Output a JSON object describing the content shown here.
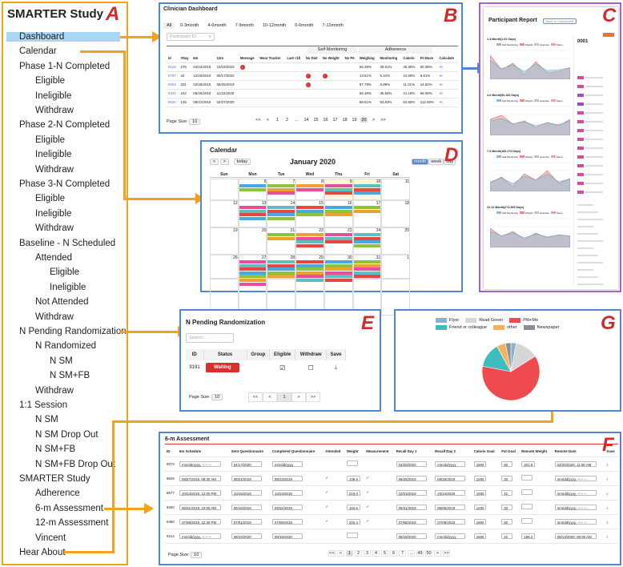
{
  "sidebar": {
    "title": "SMARTER Study",
    "letter": "A",
    "items": [
      {
        "label": "Dashboard",
        "indent": 0,
        "active": true
      },
      {
        "label": "Calendar",
        "indent": 0
      },
      {
        "label": "Phase 1-N Completed",
        "indent": 0
      },
      {
        "label": "Eligible",
        "indent": 1
      },
      {
        "label": "Ineligible",
        "indent": 1
      },
      {
        "label": "Withdraw",
        "indent": 1
      },
      {
        "label": "Phase 2-N Completed",
        "indent": 0
      },
      {
        "label": "Eligible",
        "indent": 1
      },
      {
        "label": "Ineligible",
        "indent": 1
      },
      {
        "label": "Withdraw",
        "indent": 1
      },
      {
        "label": "Phase 3-N Completed",
        "indent": 0
      },
      {
        "label": "Eligible",
        "indent": 1
      },
      {
        "label": "Ineligible",
        "indent": 1
      },
      {
        "label": "Withdraw",
        "indent": 1
      },
      {
        "label": "Baseline - N Scheduled",
        "indent": 0
      },
      {
        "label": "Attended",
        "indent": 1
      },
      {
        "label": "Eligible",
        "indent": 2
      },
      {
        "label": "Ineligible",
        "indent": 2
      },
      {
        "label": "Not Attended",
        "indent": 1
      },
      {
        "label": "Withdraw",
        "indent": 1
      },
      {
        "label": "N Pending Randomization",
        "indent": 0
      },
      {
        "label": "N Randomized",
        "indent": 1
      },
      {
        "label": "N SM",
        "indent": 2
      },
      {
        "label": "N SM+FB",
        "indent": 2
      },
      {
        "label": "Withdraw",
        "indent": 1
      },
      {
        "label": "1:1 Session",
        "indent": 0
      },
      {
        "label": "N SM",
        "indent": 1
      },
      {
        "label": "N SM Drop Out",
        "indent": 1
      },
      {
        "label": "N SM+FB",
        "indent": 1
      },
      {
        "label": "N SM+FB Drop Out",
        "indent": 1
      },
      {
        "label": "SMARTER Study",
        "indent": 0
      },
      {
        "label": "Adherence",
        "indent": 1
      },
      {
        "label": "6-m Assessment",
        "indent": 1
      },
      {
        "label": "12-m Assessment",
        "indent": 1
      },
      {
        "label": "Vincent",
        "indent": 1
      },
      {
        "label": "Hear About",
        "indent": 0
      }
    ]
  },
  "dashboard": {
    "letter": "B",
    "title": "Clinician Dashboard",
    "tabs": [
      "All",
      "0-3month",
      "4-6month",
      "7-9month",
      "10-12month",
      "0-6month",
      "7-12month"
    ],
    "search_placeholder": "Participant ID",
    "group_headers": {
      "self_monitoring": "Self Monitoring",
      "adherence": "Adherence"
    },
    "columns": [
      "Id",
      "#Day",
      "6m",
      "12m",
      "Message",
      "Wear Tracker",
      "Last <1ll",
      "No Diet",
      "No Weight",
      "No PA",
      "Weighing",
      "Monitoring",
      "Calorie",
      "Fit Base",
      "Calculate"
    ],
    "rows": [
      [
        "8106",
        "276",
        "04/22/2019",
        "10/19/2019",
        "!",
        "",
        "",
        "",
        "",
        "",
        "66.39%",
        "38.61%",
        "40.35%",
        "60.38%",
        "≪"
      ],
      [
        "8797",
        "34",
        "12/20/2019",
        "06/17/2020",
        "",
        "",
        "",
        "!",
        "!",
        "",
        "13.61%",
        "9.44%",
        "10.69%",
        "9.81%",
        "≪"
      ],
      [
        "8003",
        "331",
        "02/26/2019",
        "08/25/2019",
        "",
        "",
        "",
        "!",
        "",
        "",
        "87.78%",
        "8.89%",
        "11.01%",
        "14.82%",
        "≪"
      ],
      [
        "8320",
        "242",
        "05/26/2019",
        "11/22/2019",
        "",
        "",
        "",
        "",
        "",
        "",
        "66.39%",
        "35.56%",
        "41.18%",
        "66.08%",
        "≪"
      ],
      [
        "8625",
        "145",
        "08/31/2019",
        "02/27/2020",
        "",
        "",
        "",
        "",
        "",
        "",
        "98.61%",
        "93.83%",
        "82.59%",
        "112.69%",
        "≪"
      ]
    ],
    "page_size_label": "Page Size:",
    "page_size": "10",
    "pages": [
      "<<",
      "<",
      "1",
      "2",
      "...",
      "14",
      "15",
      "16",
      "17",
      "18",
      "19",
      "20",
      ">",
      ">>"
    ]
  },
  "calendar": {
    "letter": "D",
    "title": "Calendar",
    "month": "January 2020",
    "today_label": "today",
    "views": [
      "month",
      "week",
      "day"
    ],
    "days": [
      "Sun",
      "Mon",
      "Tue",
      "Wed",
      "Thu",
      "Fri",
      "Sat"
    ],
    "dates": [
      "",
      "6",
      "7",
      "8",
      "9",
      "10",
      "11",
      "12",
      "13",
      "14",
      "15",
      "16",
      "17",
      "18",
      "19",
      "20",
      "21",
      "22",
      "23",
      "24",
      "25",
      "26",
      "27",
      "28",
      "29",
      "30",
      "31",
      "1"
    ]
  },
  "participant_report": {
    "letter": "C",
    "title": "Participant Report",
    "back_button": "Back to Dashboard",
    "id": "0001",
    "charts": [
      {
        "title": "1-3 Month(1-91 Days)"
      },
      {
        "title": "4-6 Month(92-182 Days)"
      },
      {
        "title": "7-9 Month(183-273 Days)"
      },
      {
        "title": "10-12 Month(274-365 Days)"
      }
    ],
    "legend": [
      "Self Monitoring",
      "Weight",
      "Exercise",
      "Steps"
    ]
  },
  "randomization": {
    "letter": "E",
    "title": "N Pending Randomization",
    "search_placeholder": "Search...",
    "columns": [
      "ID",
      "Status",
      "Group",
      "Eligible",
      "Withdraw",
      "Save"
    ],
    "row": {
      "id": "9191",
      "status": "Waiting"
    },
    "page_size_label": "Page Size:",
    "page_size": "10",
    "pages": [
      "<<",
      "<",
      "1",
      ">",
      ">>"
    ]
  },
  "chart_data": {
    "type": "pie",
    "letter": "G",
    "title": "",
    "categories": [
      "Flyer",
      "Read Green",
      "Pitt+Me",
      "Friend or colleague",
      "other",
      "Newspaper"
    ],
    "values": [
      3,
      13,
      62,
      14,
      5,
      3
    ],
    "colors": [
      "#8bb1cf",
      "#d6d6d6",
      "#ee4a4f",
      "#3dbdbd",
      "#f5b25d",
      "#8b8f98"
    ],
    "legend_position": "top"
  },
  "assessment": {
    "letter": "F",
    "title": "6-m Assessment",
    "columns": [
      "ID",
      "6m Schedule",
      "Sent Questionnaire",
      "Completed Questionnaire",
      "Attended",
      "Weight",
      "Measurement",
      "Recall Day 1",
      "Recall Day 2",
      "Calorie Goal",
      "Fat Goal",
      "Remote Weight",
      "Remote Date",
      "Save"
    ],
    "rows": [
      [
        "9073",
        "mm/dd/yyyy, --:-- --",
        "04/17/2020",
        "mm/dd/yyyy",
        "",
        "",
        "",
        "04/20/2020",
        "mm/dd/yyyy",
        "1800",
        "50",
        "201.9",
        "04/20/2020, 11:00 AM"
      ],
      [
        "8625",
        "08/27/2019, 09:30 AM",
        "08/21/2019",
        "08/23/2019",
        "✓",
        "148.6",
        "✓",
        "08/25/2019",
        "08/26/2019",
        "1200",
        "33",
        "",
        "mm/dd/yyyy, --:-- --"
      ],
      [
        "8677",
        "10/24/2019, 12:00 PM",
        "10/16/2019",
        "10/24/2019",
        "✓",
        "215.0",
        "✓",
        "10/23/2019",
        "10/24/2019",
        "1500",
        "42",
        "",
        "mm/dd/yyyy, --:-- --"
      ],
      [
        "8320",
        "05/31/2019, 10:00 AM",
        "05/15/2019",
        "05/31/2019",
        "✓",
        "163.6",
        "✓",
        "05/31/2019",
        "06/05/2019",
        "1200",
        "33",
        "",
        "mm/dd/yyyy, --:-- --"
      ],
      [
        "8460",
        "07/08/2019, 12:30 PM",
        "07/01/2019",
        "07/08/2019",
        "✓",
        "202.4",
        "✓",
        "07/06/2019",
        "07/09/2019",
        "1800",
        "50",
        "",
        "mm/dd/yyyy, --:-- --"
      ],
      [
        "9214",
        "mm/dd/yyyy, --:-- --",
        "08/10/2020",
        "08/19/2020",
        "",
        "",
        "",
        "08/18/2020",
        "mm/dd/yyyy",
        "1500",
        "42",
        "196.2",
        "08/13/2020, 09:00 AM"
      ]
    ],
    "page_size_label": "Page Size:",
    "page_size": "10",
    "pages": [
      "<<",
      "<",
      "1",
      "2",
      "3",
      "4",
      "5",
      "6",
      "7",
      "...",
      "49",
      "50",
      ">",
      ">>"
    ]
  }
}
